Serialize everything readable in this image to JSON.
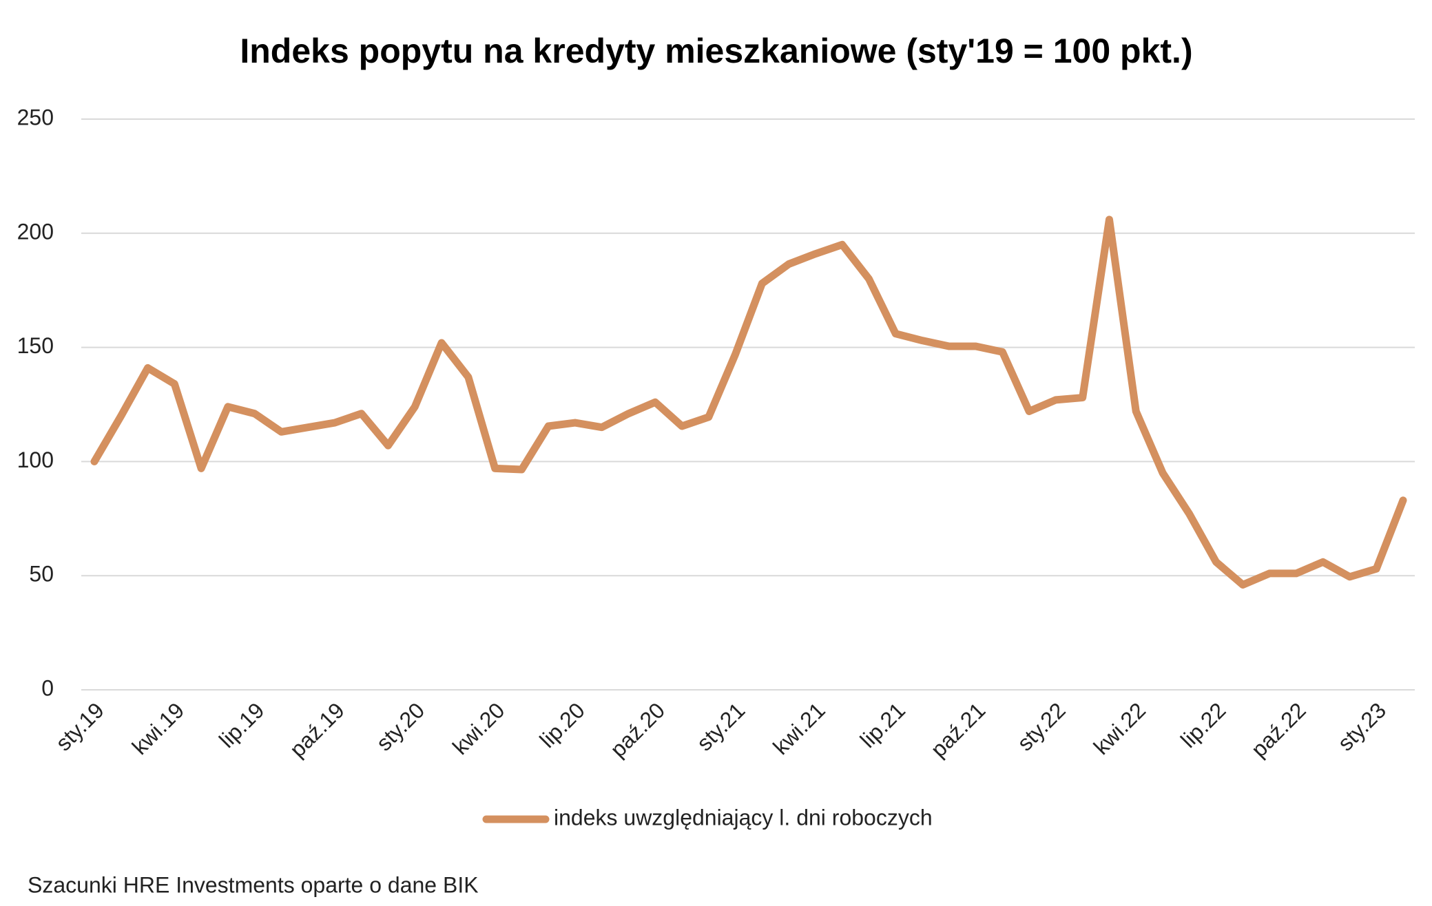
{
  "chart_data": {
    "type": "line",
    "title": "Indeks popytu na kredyty mieszkaniowe (sty'19 = 100 pkt.)",
    "categories": [
      "sty.19",
      null,
      null,
      "kwi.19",
      null,
      null,
      "lip.19",
      null,
      null,
      "paź.19",
      null,
      null,
      "sty.20",
      null,
      null,
      "kwi.20",
      null,
      null,
      "lip.20",
      null,
      null,
      "paź.20",
      null,
      null,
      "sty.21",
      null,
      null,
      "kwi.21",
      null,
      null,
      "lip.21",
      null,
      null,
      "paź.21",
      null,
      null,
      "sty.22",
      null,
      null,
      "kwi.22",
      null,
      null,
      "lip.22",
      null,
      null,
      "paź.22",
      null,
      null,
      "sty.23",
      null
    ],
    "series": [
      {
        "name": "indeks uwzględniający l. dni roboczych",
        "color": "#d4905f",
        "values": [
          100,
          120,
          141,
          134,
          97,
          124,
          121,
          113,
          115,
          117,
          121,
          107,
          124,
          152,
          137,
          97,
          96.5,
          115.5,
          117,
          115,
          121,
          126,
          115.5,
          119.5,
          147,
          178,
          186.5,
          191,
          195,
          180,
          156,
          153,
          150.5,
          150.5,
          148,
          122,
          127,
          128,
          206,
          122,
          95,
          77,
          56,
          46,
          51,
          51,
          56,
          49.5,
          53,
          83
        ]
      }
    ],
    "ylim": [
      0,
      250
    ],
    "yticks": [
      0,
      50,
      100,
      150,
      200,
      250
    ],
    "grid": true,
    "legend": "bottom",
    "source": "Szacunki HRE Investments oparte o dane BIK"
  }
}
